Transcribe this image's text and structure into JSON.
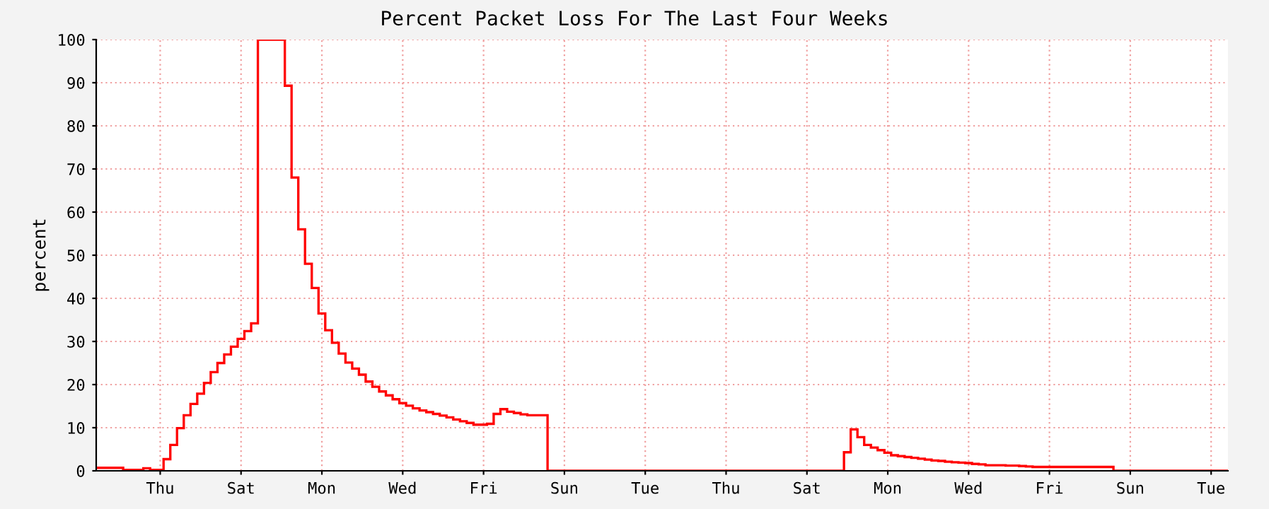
{
  "chart_data": {
    "type": "step",
    "title": "Percent Packet Loss For The Last Four Weeks",
    "ylabel": "percent",
    "categories": [
      null,
      null,
      null,
      null,
      null,
      null,
      null,
      null,
      null,
      "Thu",
      null,
      null,
      null,
      null,
      null,
      null,
      null,
      null,
      null,
      null,
      null,
      "Sat",
      null,
      null,
      null,
      null,
      null,
      null,
      null,
      null,
      null,
      null,
      null,
      "Mon",
      null,
      null,
      null,
      null,
      null,
      null,
      null,
      null,
      null,
      null,
      null,
      "Wed",
      null,
      null,
      null,
      null,
      null,
      null,
      null,
      null,
      null,
      null,
      null,
      "Fri",
      null,
      null,
      null,
      null,
      null,
      null,
      null,
      null,
      null,
      null,
      null,
      "Sun",
      null,
      null,
      null,
      null,
      null,
      null,
      null,
      null,
      null,
      null,
      null,
      "Tue",
      null,
      null,
      null,
      null,
      null,
      null,
      null,
      null,
      null,
      null,
      null,
      "Thu",
      null,
      null,
      null,
      null,
      null,
      null,
      null,
      null,
      null,
      null,
      null,
      "Sat",
      null,
      null,
      null,
      null,
      null,
      null,
      null,
      null,
      null,
      null,
      null,
      "Mon",
      null,
      null,
      null,
      null,
      null,
      null,
      null,
      null,
      null,
      null,
      null,
      "Wed",
      null,
      null,
      null,
      null,
      null,
      null,
      null,
      null,
      null,
      null,
      null,
      "Fri",
      null,
      null,
      null,
      null,
      null,
      null,
      null,
      null,
      null,
      null,
      null,
      "Sun",
      null,
      null,
      null,
      null,
      null,
      null,
      null,
      null,
      null,
      null,
      null,
      "Tue",
      null,
      null
    ],
    "series": [
      {
        "color": "#ff0000",
        "line_style": "solid",
        "values": [
          0.7,
          0.7,
          0.7,
          0.7,
          0.2,
          0.2,
          0.2,
          0.6,
          0.2,
          0.2,
          2.7,
          6,
          9.9,
          12.9,
          15.5,
          17.9,
          20.4,
          22.9,
          25.0,
          27.0,
          28.8,
          30.6,
          32.4,
          34.2,
          100,
          100,
          100,
          100,
          89.3,
          68,
          56,
          48,
          42.4,
          36.5,
          32.6,
          29.7,
          27.2,
          25.1,
          23.7,
          22.3,
          20.7,
          19.5,
          18.4,
          17.5,
          16.6,
          15.7,
          15.1,
          14.5,
          14.0,
          13.6,
          13.2,
          12.8,
          12.4,
          11.9,
          11.5,
          11.1,
          10.7,
          10.7,
          10.9,
          13.2,
          14.3,
          13.7,
          13.4,
          13.1,
          12.9,
          12.9,
          12.9,
          0,
          0,
          0,
          0,
          0,
          0,
          0,
          0,
          0,
          0,
          0,
          0,
          0,
          0,
          0,
          0,
          0,
          0,
          0,
          0,
          0,
          0,
          0,
          0,
          0,
          0,
          0,
          0,
          0,
          0,
          0,
          0,
          0,
          0,
          0,
          0,
          0,
          0,
          0,
          0,
          0,
          0,
          0,
          0,
          4.3,
          9.6,
          7.8,
          6.0,
          5.4,
          4.8,
          4.2,
          3.6,
          3.4,
          3.2,
          3.0,
          2.8,
          2.6,
          2.4,
          2.3,
          2.1,
          2.0,
          1.9,
          1.8,
          1.6,
          1.5,
          1.3,
          1.3,
          1.3,
          1.2,
          1.2,
          1.1,
          1.0,
          0.9,
          0.9,
          0.9,
          0.9,
          0.9,
          0.9,
          0.9,
          0.9,
          0.9,
          0.9,
          0.9,
          0.9,
          0,
          0,
          0,
          0,
          0,
          0,
          0,
          0,
          0,
          0,
          0,
          0,
          0,
          0,
          0,
          0,
          0
        ]
      }
    ],
    "ylim": [
      0,
      100
    ],
    "yticks": [
      0,
      10,
      20,
      30,
      40,
      50,
      60,
      70,
      80,
      90,
      100
    ],
    "grid": true,
    "legend": false
  }
}
